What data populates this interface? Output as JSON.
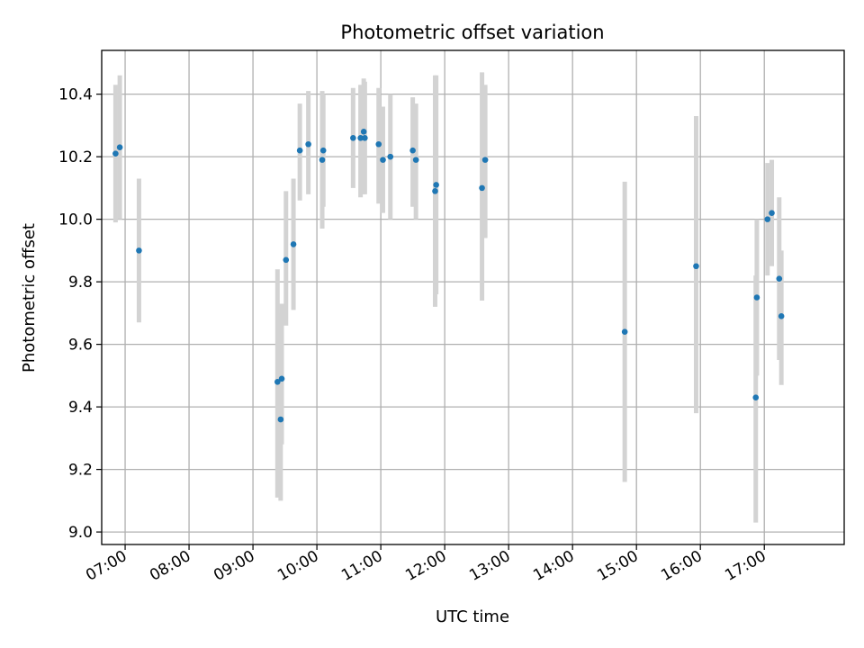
{
  "chart_data": {
    "type": "scatter",
    "title": "Photometric offset variation",
    "xlabel": "UTC time",
    "ylabel": "Photometric offset",
    "x_unit": "UTC hours",
    "xlim": [
      "06:38",
      "18:15"
    ],
    "ylim": [
      8.96,
      10.54
    ],
    "grid": true,
    "x_ticks": [
      "07:00",
      "08:00",
      "09:00",
      "10:00",
      "11:00",
      "12:00",
      "13:00",
      "14:00",
      "15:00",
      "16:00",
      "17:00"
    ],
    "y_ticks": [
      "9.0",
      "9.2",
      "9.4",
      "9.6",
      "9.8",
      "10.0",
      "10.2",
      "10.4"
    ],
    "series": [
      {
        "points": [
          {
            "x": "06:51",
            "y": 10.21,
            "low": 9.99,
            "high": 10.43
          },
          {
            "x": "06:55",
            "y": 10.23,
            "low": 10.0,
            "high": 10.46
          },
          {
            "x": "07:13",
            "y": 9.9,
            "low": 9.67,
            "high": 10.13
          },
          {
            "x": "09:23",
            "y": 9.48,
            "low": 9.11,
            "high": 9.84
          },
          {
            "x": "09:26",
            "y": 9.36,
            "low": 9.1,
            "high": 9.7
          },
          {
            "x": "09:27",
            "y": 9.49,
            "low": 9.28,
            "high": 9.73
          },
          {
            "x": "09:31",
            "y": 9.87,
            "low": 9.66,
            "high": 10.09
          },
          {
            "x": "09:38",
            "y": 9.92,
            "low": 9.71,
            "high": 10.13
          },
          {
            "x": "09:44",
            "y": 10.22,
            "low": 10.06,
            "high": 10.37
          },
          {
            "x": "09:52",
            "y": 10.24,
            "low": 10.08,
            "high": 10.41
          },
          {
            "x": "10:05",
            "y": 10.19,
            "low": 9.97,
            "high": 10.41
          },
          {
            "x": "10:06",
            "y": 10.22,
            "low": 10.04,
            "high": 10.4
          },
          {
            "x": "10:34",
            "y": 10.26,
            "low": 10.1,
            "high": 10.42
          },
          {
            "x": "10:41",
            "y": 10.26,
            "low": 10.07,
            "high": 10.43
          },
          {
            "x": "10:44",
            "y": 10.28,
            "low": 10.08,
            "high": 10.45
          },
          {
            "x": "10:45",
            "y": 10.26,
            "low": 10.08,
            "high": 10.44
          },
          {
            "x": "10:58",
            "y": 10.24,
            "low": 10.05,
            "high": 10.42
          },
          {
            "x": "11:02",
            "y": 10.19,
            "low": 10.02,
            "high": 10.36
          },
          {
            "x": "11:09",
            "y": 10.2,
            "low": 10.0,
            "high": 10.4
          },
          {
            "x": "11:30",
            "y": 10.22,
            "low": 10.04,
            "high": 10.39
          },
          {
            "x": "11:33",
            "y": 10.19,
            "low": 10.0,
            "high": 10.37
          },
          {
            "x": "11:52",
            "y": 10.11,
            "low": 9.76,
            "high": 10.46
          },
          {
            "x": "11:51",
            "y": 10.09,
            "low": 9.72,
            "high": 10.46
          },
          {
            "x": "12:35",
            "y": 10.1,
            "low": 9.74,
            "high": 10.47
          },
          {
            "x": "12:38",
            "y": 10.19,
            "low": 9.94,
            "high": 10.43
          },
          {
            "x": "14:49",
            "y": 9.64,
            "low": 9.16,
            "high": 10.12
          },
          {
            "x": "15:56",
            "y": 9.85,
            "low": 9.38,
            "high": 10.33
          },
          {
            "x": "16:52",
            "y": 9.43,
            "low": 9.03,
            "high": 9.82
          },
          {
            "x": "16:53",
            "y": 9.75,
            "low": 9.5,
            "high": 10.0
          },
          {
            "x": "17:03",
            "y": 10.0,
            "low": 9.82,
            "high": 10.18
          },
          {
            "x": "17:07",
            "y": 10.02,
            "low": 9.85,
            "high": 10.19
          },
          {
            "x": "17:14",
            "y": 9.81,
            "low": 9.55,
            "high": 10.07
          },
          {
            "x": "17:16",
            "y": 9.69,
            "low": 9.47,
            "high": 9.9
          }
        ]
      }
    ]
  },
  "colors": {
    "marker": "#1f77b4",
    "errorbar": "#d3d3d3",
    "grid": "#b0b0b0"
  }
}
